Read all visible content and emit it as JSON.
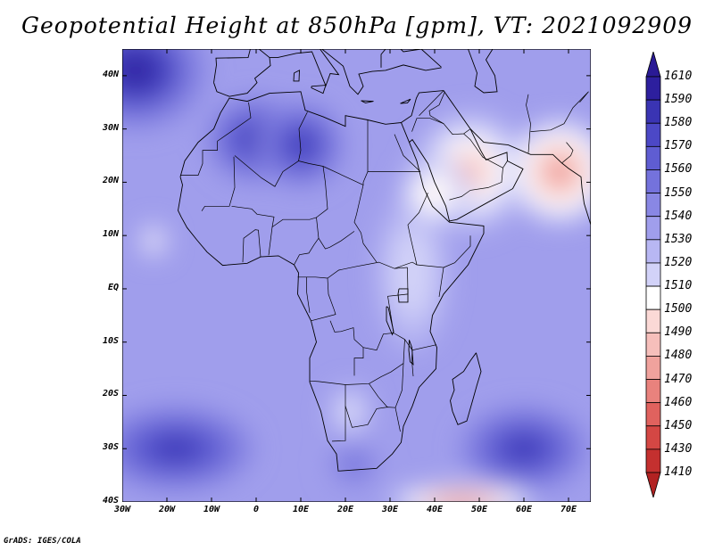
{
  "title": "Geopotential Height at 850hPa [gpm], VT: 2021092909",
  "credit": "GrADS: IGES/COLA",
  "map": {
    "lon_range": [
      -30,
      75
    ],
    "lat_range": [
      -40,
      45
    ],
    "lat_ticks": [
      "40N",
      "30N",
      "20N",
      "10N",
      "EQ",
      "10S",
      "20S",
      "30S",
      "40S"
    ],
    "lon_ticks": [
      "30W",
      "20W",
      "10W",
      "0",
      "10E",
      "20E",
      "30E",
      "40E",
      "50E",
      "60E",
      "70E"
    ]
  },
  "colorbar": {
    "levels": [
      "1610",
      "1590",
      "1580",
      "1570",
      "1560",
      "1550",
      "1540",
      "1530",
      "1520",
      "1510",
      "1500",
      "1490",
      "1480",
      "1470",
      "1460",
      "1450",
      "1430",
      "1410"
    ],
    "colors": [
      "#2d1f9e",
      "#3a34b3",
      "#4c48c6",
      "#5f5dd2",
      "#7472dc",
      "#8987e4",
      "#a09eec",
      "#b8b7f3",
      "#d2d2f8",
      "#ffffff",
      "#fbd9d6",
      "#f6bfbb",
      "#f0a29d",
      "#e9827d",
      "#e0625e",
      "#d44744",
      "#c4302f"
    ],
    "top_color": "#2a1a95",
    "bottom_color": "#b22222"
  },
  "field": {
    "highs": [
      {
        "name": "azores-high",
        "lon": -27,
        "lat": 41,
        "value": 1600,
        "sx": 10,
        "sy": 7
      },
      {
        "name": "sahara-high-west",
        "lon": 0,
        "lat": 28,
        "value": 1582,
        "sx": 7,
        "sy": 5
      },
      {
        "name": "libya-high",
        "lon": 10,
        "lat": 27,
        "value": 1580,
        "sx": 6,
        "sy": 5
      },
      {
        "name": "south-atlantic-high",
        "lon": -18,
        "lat": -30,
        "value": 1586,
        "sx": 11,
        "sy": 5
      },
      {
        "name": "indian-ocean-high",
        "lon": 60,
        "lat": -30,
        "value": 1586,
        "sx": 9,
        "sy": 5
      },
      {
        "name": "south-africa-high",
        "lon": 22,
        "lat": -33,
        "value": 1556,
        "sx": 4,
        "sy": 3
      }
    ],
    "lows": [
      {
        "name": "arabian-low",
        "lon": 48,
        "lat": 22,
        "value": 1488,
        "sx": 8,
        "sy": 7
      },
      {
        "name": "pakistan-low",
        "lon": 68,
        "lat": 22,
        "value": 1468,
        "sx": 7,
        "sy": 6
      },
      {
        "name": "southern-ocean-low",
        "lon": 46,
        "lat": -40,
        "value": 1460,
        "sx": 10,
        "sy": 2
      },
      {
        "name": "atlantic-low-spot",
        "lon": -23,
        "lat": 9,
        "value": 1498,
        "sx": 2,
        "sy": 2
      },
      {
        "name": "kalahari-low",
        "lon": 21,
        "lat": -23,
        "value": 1505,
        "sx": 3,
        "sy": 3
      },
      {
        "name": "east-africa-low",
        "lon": 35,
        "lat": 3,
        "value": 1512,
        "sx": 5,
        "sy": 9
      },
      {
        "name": "red-sea-low",
        "lon": 40,
        "lat": 18,
        "value": 1496,
        "sx": 5,
        "sy": 4
      }
    ],
    "base_value": 1530
  }
}
